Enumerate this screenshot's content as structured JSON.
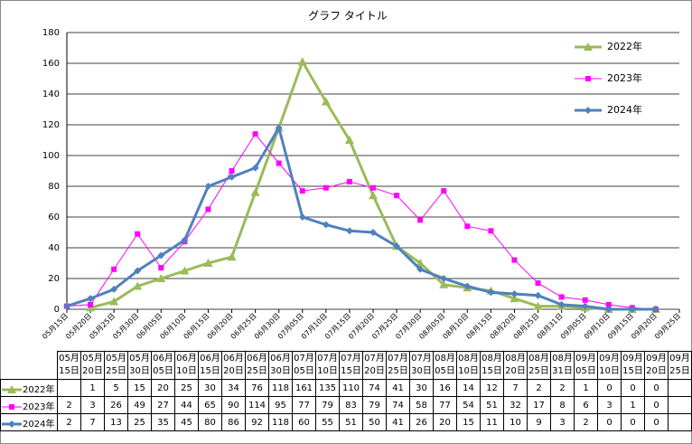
{
  "chart_data": {
    "type": "line",
    "title": "グラフ タイトル",
    "categories": [
      "05月15日",
      "05月20日",
      "05月25日",
      "05月30日",
      "06月05日",
      "06月10日",
      "06月15日",
      "06月20日",
      "06月25日",
      "06月30日",
      "07月05日",
      "07月10日",
      "07月15日",
      "07月20日",
      "07月25日",
      "07月30日",
      "08月05日",
      "08月10日",
      "08月15日",
      "08月20日",
      "08月25日",
      "08月31日",
      "09月05日",
      "09月10日",
      "09月15日",
      "09月20日",
      "09月25日"
    ],
    "series": [
      {
        "name": "2022年",
        "color": "#9bbb59",
        "marker": "triangle",
        "values": [
          null,
          1,
          5,
          15,
          20,
          25,
          30,
          34,
          76,
          118,
          161,
          135,
          110,
          74,
          41,
          30,
          16,
          14,
          12,
          7,
          2,
          2,
          1,
          0,
          0,
          0,
          null
        ]
      },
      {
        "name": "2023年",
        "color": "#ff00ff",
        "marker": "square",
        "values": [
          2,
          3,
          26,
          49,
          27,
          44,
          65,
          90,
          114,
          95,
          77,
          79,
          83,
          79,
          74,
          58,
          77,
          54,
          51,
          32,
          17,
          8,
          6,
          3,
          1,
          0,
          null
        ]
      },
      {
        "name": "2024年",
        "color": "#4f81bd",
        "marker": "diamond",
        "values": [
          2,
          7,
          13,
          25,
          35,
          45,
          80,
          86,
          92,
          118,
          60,
          55,
          51,
          50,
          41,
          26,
          20,
          15,
          11,
          10,
          9,
          3,
          2,
          0,
          0,
          0,
          null
        ]
      }
    ],
    "ylim": [
      0,
      180
    ],
    "yticks": [
      0,
      20,
      40,
      60,
      80,
      100,
      120,
      140,
      160,
      180
    ],
    "grid": true,
    "legend": "right",
    "data_table": true
  }
}
